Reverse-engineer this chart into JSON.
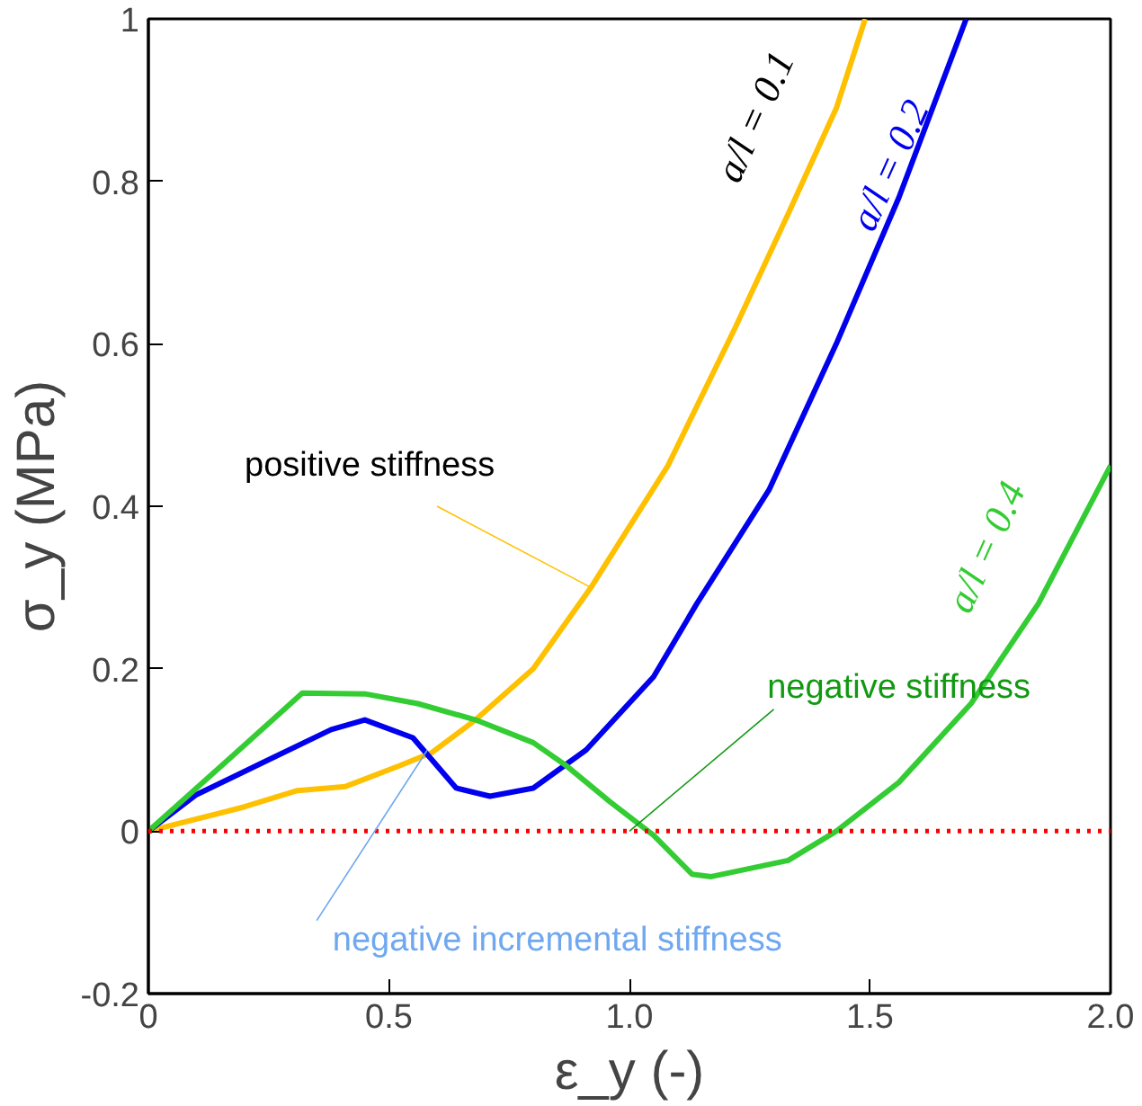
{
  "chart_data": {
    "type": "line",
    "xlabel": "ε_y (-)",
    "ylabel": "σ_y (MPa)",
    "xlim": [
      0,
      2
    ],
    "ylim": [
      -0.2,
      1
    ],
    "xticks": [
      0,
      0.5,
      {
        "value": 1,
        "label": "1.0"
      },
      1.5,
      {
        "value": 2,
        "label": "2.0"
      }
    ],
    "yticks": [
      -0.2,
      0,
      0.2,
      0.4,
      0.6,
      0.8,
      1
    ],
    "grid": false,
    "line_style": "solid",
    "marker": "none",
    "series": [
      {
        "name": "a/l = 0.1",
        "color": "#ffc000",
        "x": [
          0,
          0.2,
          0.31,
          0.41,
          0.52,
          0.59,
          0.68,
          0.8,
          0.92,
          1.08,
          1.22,
          1.33,
          1.43,
          1.49
        ],
        "values": [
          0,
          0.03,
          0.05,
          0.055,
          0.08,
          0.097,
          0.137,
          0.2,
          0.3,
          0.45,
          0.62,
          0.76,
          0.89,
          1.0
        ]
      },
      {
        "name": "a/l = 0.2",
        "color": "#0000ee",
        "x": [
          0,
          0.1,
          0.24,
          0.38,
          0.45,
          0.55,
          0.64,
          0.71,
          0.8,
          0.91,
          1.05,
          1.14,
          1.29,
          1.43,
          1.56,
          1.7
        ],
        "values": [
          0,
          0.045,
          0.085,
          0.125,
          0.137,
          0.115,
          0.053,
          0.043,
          0.053,
          0.1,
          0.19,
          0.28,
          0.42,
          0.6,
          0.78,
          1.0
        ]
      },
      {
        "name": "a/l = 0.4",
        "color": "#33cc33",
        "x": [
          0,
          0.17,
          0.32,
          0.45,
          0.56,
          0.68,
          0.8,
          0.87,
          0.96,
          1.05,
          1.13,
          1.17,
          1.33,
          1.43,
          1.56,
          1.71,
          1.85,
          2.0
        ],
        "values": [
          0,
          0.09,
          0.17,
          0.169,
          0.157,
          0.137,
          0.109,
          0.08,
          0.036,
          -0.005,
          -0.053,
          -0.056,
          -0.036,
          0,
          0.06,
          0.157,
          0.28,
          0.45
        ]
      }
    ],
    "ref_lines": [
      {
        "axis": "y",
        "value": 0,
        "color": "#ff0000",
        "line_style": "dotted"
      }
    ],
    "annotations": [
      {
        "text": "positive stiffness",
        "x": 0.92,
        "y": 0.3
      },
      {
        "text": "negative incremental stiffness",
        "x": 0.58,
        "y": 0.1
      },
      {
        "text": "negative stiffness",
        "x": 1.0,
        "y": 0.0
      }
    ]
  }
}
